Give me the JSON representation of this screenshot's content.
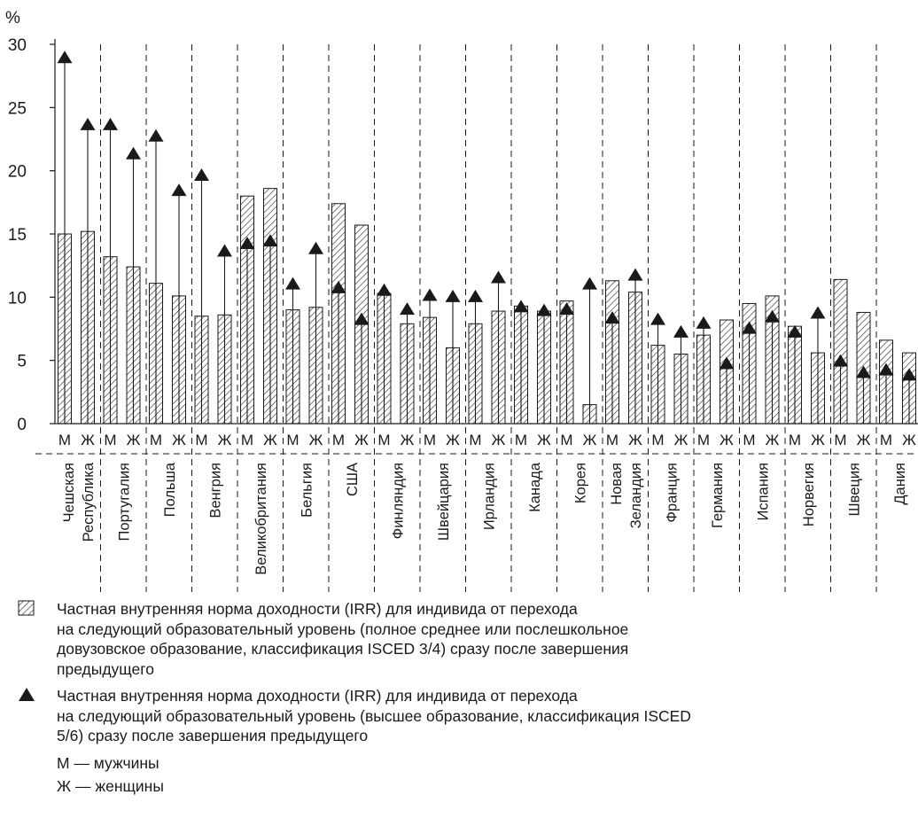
{
  "chart_data": {
    "type": "bar",
    "ylabel": "%",
    "ylim": [
      0,
      30
    ],
    "yticks": [
      "0",
      "5",
      "10",
      "15",
      "20",
      "25",
      "30"
    ],
    "sex_labels": [
      "М",
      "Ж"
    ],
    "categories": [
      [
        "Чешская",
        "Республика"
      ],
      [
        "Португалия"
      ],
      [
        "Польша"
      ],
      [
        "Венгрия"
      ],
      [
        "Великобритания"
      ],
      [
        "Бельгия"
      ],
      [
        "США"
      ],
      [
        "Финляндия"
      ],
      [
        "Швейцария"
      ],
      [
        "Ирландия"
      ],
      [
        "Канада"
      ],
      [
        "Корея"
      ],
      [
        "Новая",
        "Зеландия"
      ],
      [
        "Франция"
      ],
      [
        "Германия"
      ],
      [
        "Испания"
      ],
      [
        "Норвегия"
      ],
      [
        "Швеция"
      ],
      [
        "Дания"
      ]
    ],
    "series": [
      {
        "name": "Частная внутренняя норма доходности (IRR) для индивида от перехода на следующий образовательный уровень (полное среднее или послешкольное довузовское образование, классификация ISCED 3/4) сразу после завершения предыдущего",
        "marker": "hatched-bar",
        "values": [
          [
            15.0,
            15.2
          ],
          [
            13.2,
            12.4
          ],
          [
            11.1,
            10.1
          ],
          [
            8.5,
            8.6
          ],
          [
            18.0,
            18.6
          ],
          [
            9.0,
            9.2
          ],
          [
            17.4,
            15.7
          ],
          [
            10.3,
            7.9
          ],
          [
            8.4,
            6.0
          ],
          [
            7.9,
            8.9
          ],
          [
            9.3,
            8.9
          ],
          [
            9.7,
            1.5
          ],
          [
            11.3,
            10.4
          ],
          [
            6.2,
            5.5
          ],
          [
            7.0,
            8.2
          ],
          [
            9.5,
            10.1
          ],
          [
            7.7,
            5.6
          ],
          [
            11.4,
            8.8
          ],
          [
            6.6,
            5.6
          ]
        ]
      },
      {
        "name": "Частная внутренняя норма доходности (IRR) для индивида от перехода на следующий образовательный уровень (высшее образование, классификация ISCED 5/6) сразу после завершения предыдущего",
        "marker": "triangle",
        "values": [
          [
            29.0,
            23.7
          ],
          [
            23.7,
            21.4
          ],
          [
            22.8,
            18.5
          ],
          [
            19.7,
            13.7
          ],
          [
            14.3,
            14.5
          ],
          [
            11.1,
            13.9
          ],
          [
            10.8,
            8.3
          ],
          [
            10.6,
            9.1
          ],
          [
            10.2,
            10.1
          ],
          [
            10.1,
            11.6
          ],
          [
            9.3,
            9.0
          ],
          [
            9.1,
            11.1
          ],
          [
            8.4,
            11.8
          ],
          [
            8.3,
            7.3
          ],
          [
            8.0,
            4.8
          ],
          [
            7.6,
            8.5
          ],
          [
            7.3,
            8.8
          ],
          [
            5.0,
            4.1
          ],
          [
            4.3,
            3.9
          ]
        ]
      }
    ],
    "legend": [
      {
        "symbol": "hatched-box",
        "lines": [
          "Частная внутренняя норма доходности (IRR) для индивида от перехода",
          "на следующий образовательный уровень (полное среднее или послешкольное",
          "довузовское образование, классификация ISCED 3/4) сразу после завершения",
          "предыдущего"
        ]
      },
      {
        "symbol": "triangle",
        "lines": [
          "Частная внутренняя норма доходности (IRR) для индивида от перехода",
          "на следующий образовательный уровень (высшее образование, классификация ISCED",
          "5/6) сразу после завершения предыдущего"
        ]
      },
      {
        "symbol": "none",
        "lines": [
          "М — мужчины"
        ]
      },
      {
        "symbol": "none",
        "lines": [
          "Ж — женщины"
        ]
      }
    ],
    "colors": {
      "ink": "#1a1a1a",
      "hatch": "#333333",
      "background": "#ffffff"
    }
  }
}
